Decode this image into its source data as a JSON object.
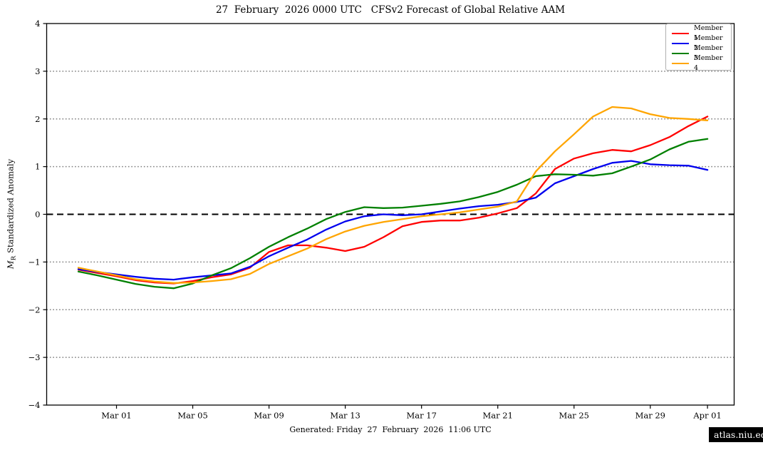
{
  "title": "27  February  2026 0000 UTC   CFSv2 Forecast of Global Relative AAM",
  "axis": {
    "y_label_var": "M",
    "y_label_sub": "R",
    "y_label_text": "Standardized Anomaly",
    "y_tick_labels": [
      "4",
      "3",
      "2",
      "1",
      "0",
      "−1",
      "−2",
      "−3",
      "−4"
    ],
    "y_tick_values": [
      4,
      3,
      2,
      1,
      0,
      -1,
      -2,
      -3,
      -4
    ]
  },
  "footer": {
    "generated": "Generated: Friday  27  February  2026  11:06 UTC",
    "badge": "atlas.niu.edu"
  },
  "colors": {
    "grid_dotted": "#7f7f7f",
    "zero_line": "#000000",
    "frame": "#000000"
  },
  "chart_data": {
    "type": "line",
    "title": "27  February  2026 0000 UTC   CFSv2 Forecast of Global Relative AAM",
    "xlabel": "",
    "ylabel": "M_R Standardized Anomaly",
    "ylim": [
      -4,
      4
    ],
    "grid": "dotted horizontal lines at ±1, ±2, ±3; dashed black line at 0",
    "legend_position": "upper right",
    "x_tick_labels": [
      "Mar 01",
      "Mar 05",
      "Mar 09",
      "Mar 13",
      "Mar 17",
      "Mar 21",
      "Mar 25",
      "Mar 29",
      "Apr 01"
    ],
    "x_tick_days": [
      2,
      6,
      10,
      14,
      18,
      22,
      26,
      30,
      33
    ],
    "dates": [
      "Feb 27",
      "Feb 28",
      "Mar 01",
      "Mar 02",
      "Mar 03",
      "Mar 04",
      "Mar 05",
      "Mar 06",
      "Mar 07",
      "Mar 08",
      "Mar 09",
      "Mar 10",
      "Mar 11",
      "Mar 12",
      "Mar 13",
      "Mar 14",
      "Mar 15",
      "Mar 16",
      "Mar 17",
      "Mar 18",
      "Mar 19",
      "Mar 20",
      "Mar 21",
      "Mar 22",
      "Mar 23",
      "Mar 24",
      "Mar 25",
      "Mar 26",
      "Mar 27",
      "Mar 28",
      "Mar 29",
      "Mar 30",
      "Mar 31",
      "Apr 01"
    ],
    "series": [
      {
        "name": "Member 1",
        "color": "#ff0000",
        "values": [
          -1.16,
          -1.23,
          -1.3,
          -1.38,
          -1.43,
          -1.45,
          -1.4,
          -1.32,
          -1.26,
          -1.12,
          -0.79,
          -0.65,
          -0.65,
          -0.7,
          -0.77,
          -0.68,
          -0.48,
          -0.25,
          -0.16,
          -0.13,
          -0.13,
          -0.07,
          0.02,
          0.13,
          0.44,
          0.95,
          1.17,
          1.28,
          1.35,
          1.32,
          1.45,
          1.62,
          1.85,
          2.05
        ]
      },
      {
        "name": "Member 2",
        "color": "#0000ee",
        "values": [
          -1.15,
          -1.21,
          -1.26,
          -1.31,
          -1.35,
          -1.37,
          -1.32,
          -1.28,
          -1.24,
          -1.1,
          -0.88,
          -0.7,
          -0.53,
          -0.32,
          -0.15,
          -0.04,
          0.0,
          -0.02,
          0.0,
          0.06,
          0.12,
          0.17,
          0.2,
          0.26,
          0.35,
          0.65,
          0.8,
          0.95,
          1.08,
          1.12,
          1.05,
          1.03,
          1.02,
          0.93
        ]
      },
      {
        "name": "Member 3",
        "color": "#008000",
        "values": [
          -1.2,
          -1.28,
          -1.37,
          -1.46,
          -1.52,
          -1.55,
          -1.45,
          -1.28,
          -1.13,
          -0.92,
          -0.68,
          -0.48,
          -0.3,
          -0.1,
          0.05,
          0.15,
          0.13,
          0.14,
          0.18,
          0.22,
          0.27,
          0.36,
          0.47,
          0.62,
          0.8,
          0.84,
          0.83,
          0.81,
          0.86,
          1.0,
          1.15,
          1.36,
          1.52,
          1.58
        ]
      },
      {
        "name": "Member 4",
        "color": "#ffa500",
        "values": [
          -1.12,
          -1.2,
          -1.28,
          -1.36,
          -1.41,
          -1.44,
          -1.43,
          -1.4,
          -1.36,
          -1.25,
          -1.04,
          -0.88,
          -0.72,
          -0.52,
          -0.36,
          -0.24,
          -0.16,
          -0.1,
          -0.04,
          0.0,
          0.04,
          0.1,
          0.16,
          0.27,
          0.9,
          1.32,
          1.68,
          2.05,
          2.25,
          2.22,
          2.1,
          2.02,
          2.0,
          1.97
        ]
      }
    ],
    "gridline_dotted_levels": [
      -3,
      -2,
      -1,
      1,
      2,
      3
    ],
    "zero_line_level": 0
  }
}
